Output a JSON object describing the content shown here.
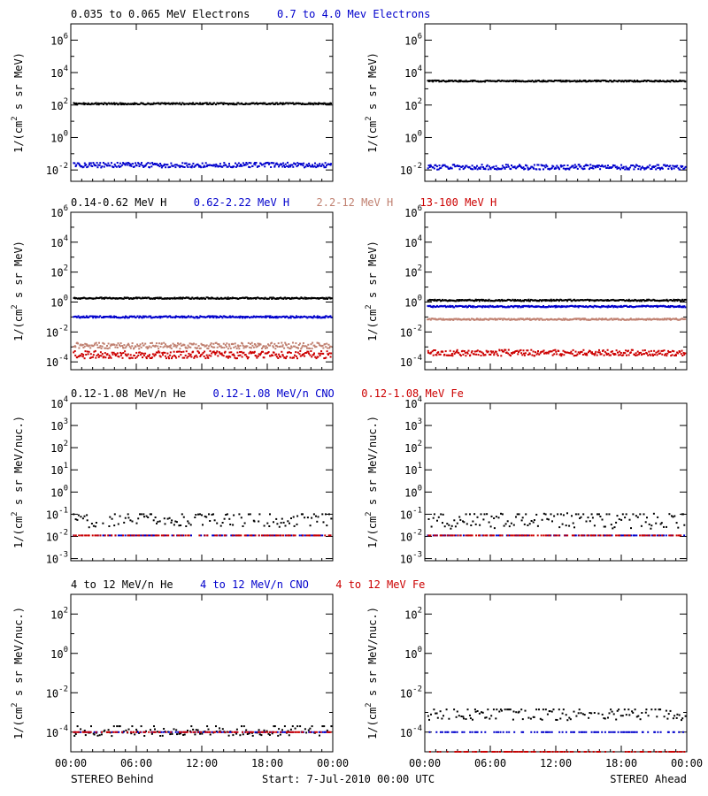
{
  "chart_data": [
    {
      "type": "scatter",
      "panel": "top-left",
      "yscale": "log",
      "ylim": [
        0.002,
        10000000
      ],
      "yticks": [
        "10^6",
        "10^4",
        "10^2",
        "10^0",
        "10^-2"
      ],
      "ylabel": "1/(cm² s sr MeV)",
      "xlabel": "",
      "x": [
        "00:00",
        "06:00",
        "12:00",
        "18:00",
        "00:00"
      ],
      "series": [
        {
          "name": "0.035 to 0.065 MeV Electrons",
          "color": "#000000",
          "level": 120,
          "scatter": 0.05
        },
        {
          "name": "0.7 to 4.0 Mev Electrons",
          "color": "#0000cc",
          "level": 0.02,
          "scatter": 0.15
        }
      ]
    },
    {
      "type": "scatter",
      "panel": "top-right",
      "yscale": "log",
      "ylim": [
        0.002,
        10000000
      ],
      "yticks": [
        "10^6",
        "10^4",
        "10^2",
        "10^0",
        "10^-2"
      ],
      "ylabel": "1/(cm² s sr MeV)",
      "xlabel": "",
      "x": [
        "00:00",
        "06:00",
        "12:00",
        "18:00",
        "00:00"
      ],
      "series": [
        {
          "color": "#000000",
          "level": 3000,
          "scatter": 0.04
        },
        {
          "color": "#0000cc",
          "level": 0.015,
          "scatter": 0.15
        }
      ]
    },
    {
      "type": "scatter",
      "panel": "row2-left",
      "yscale": "log",
      "ylim": [
        3e-05,
        1000000
      ],
      "yticks": [
        "10^6",
        "10^4",
        "10^2",
        "10^0",
        "10^-2",
        "10^-4"
      ],
      "ylabel": "1/(cm² s sr MeV)",
      "xlabel": "",
      "x": [
        "00:00",
        "06:00",
        "12:00",
        "18:00",
        "00:00"
      ],
      "series": [
        {
          "name": "0.14-0.62 MeV H",
          "color": "#000000",
          "level": 1.8,
          "scatter": 0.05
        },
        {
          "name": "0.62-2.22 MeV H",
          "color": "#0000cc",
          "level": 0.1,
          "scatter": 0.06
        },
        {
          "name": "2.2-12 MeV H",
          "color": "#c08070",
          "level": 0.0012,
          "scatter": 0.2
        },
        {
          "name": "13-100 MeV H",
          "color": "#cc0000",
          "level": 0.0003,
          "scatter": 0.25
        }
      ]
    },
    {
      "type": "scatter",
      "panel": "row2-right",
      "yscale": "log",
      "ylim": [
        3e-05,
        1000000
      ],
      "yticks": [
        "10^6",
        "10^4",
        "10^2",
        "10^0",
        "10^-2",
        "10^-4"
      ],
      "ylabel": "1/(cm² s sr MeV)",
      "xlabel": "",
      "x": [
        "00:00",
        "06:00",
        "12:00",
        "18:00",
        "00:00"
      ],
      "series": [
        {
          "color": "#000000",
          "level": 1.3,
          "scatter": 0.05
        },
        {
          "color": "#0000cc",
          "level": 0.5,
          "scatter": 0.05
        },
        {
          "color": "#c08070",
          "level": 0.07,
          "scatter": 0.05
        },
        {
          "color": "#cc0000",
          "level": 0.0004,
          "scatter": 0.2
        }
      ]
    },
    {
      "type": "scatter",
      "panel": "row3-left",
      "yscale": "log",
      "ylim": [
        0.0008,
        10000
      ],
      "yticks": [
        "10^4",
        "10^3",
        "10^2",
        "10^1",
        "10^0",
        "10^-1",
        "10^-2",
        "10^-3"
      ],
      "ylabel": "1/(cm² s sr MeV/nuc.)",
      "xlabel": "",
      "x": [
        "00:00",
        "06:00",
        "12:00",
        "18:00",
        "00:00"
      ],
      "series": [
        {
          "name": "0.12-1.08 MeV/n He",
          "color": "#000000",
          "level": 0.05,
          "scatter": 0.3
        },
        {
          "name": "0.12-1.08 MeV/n CNO",
          "color": "#0000cc",
          "level": 0.011,
          "scatter": 0.0
        },
        {
          "name": "0.12-1.08 MeV Fe",
          "color": "#cc0000",
          "level": 0.011,
          "scatter": 0.0
        }
      ]
    },
    {
      "type": "scatter",
      "panel": "row3-right",
      "yscale": "log",
      "ylim": [
        0.0008,
        10000
      ],
      "yticks": [
        "10^4",
        "10^3",
        "10^2",
        "10^1",
        "10^0",
        "10^-1",
        "10^-2",
        "10^-3"
      ],
      "ylabel": "1/(cm² s sr MeV/nuc.)",
      "xlabel": "",
      "x": [
        "00:00",
        "06:00",
        "12:00",
        "18:00",
        "00:00"
      ],
      "series": [
        {
          "color": "#000000",
          "level": 0.05,
          "scatter": 0.35
        },
        {
          "color": "#0000cc",
          "level": 0.011,
          "scatter": 0.0
        },
        {
          "color": "#cc0000",
          "level": 0.011,
          "scatter": 0.0
        }
      ]
    },
    {
      "type": "scatter",
      "panel": "row4-left",
      "yscale": "log",
      "ylim": [
        1e-05,
        1000
      ],
      "yticks": [
        "10^2",
        "10^0",
        "10^-2",
        "10^-4"
      ],
      "ylabel": "1/(cm² s sr MeV/nuc.)",
      "xlabel": "",
      "x": [
        "00:00",
        "06:00",
        "12:00",
        "18:00",
        "00:00"
      ],
      "series": [
        {
          "name": "4 to 12 MeV/n He",
          "color": "#000000",
          "level": 0.0001,
          "scatter": 0.2
        },
        {
          "name": "4 to 12 MeV/n CNO",
          "color": "#0000cc",
          "level": 0.0001,
          "scatter": 0.0
        },
        {
          "name": "4 to 12 MeV Fe",
          "color": "#cc0000",
          "level": 0.0001,
          "scatter": 0.0
        }
      ]
    },
    {
      "type": "scatter",
      "panel": "row4-right",
      "yscale": "log",
      "ylim": [
        1e-05,
        1000
      ],
      "yticks": [
        "10^2",
        "10^0",
        "10^-2",
        "10^-4"
      ],
      "ylabel": "1/(cm² s sr MeV/nuc.)",
      "xlabel": "",
      "x": [
        "00:00",
        "06:00",
        "12:00",
        "18:00",
        "00:00"
      ],
      "series": [
        {
          "color": "#000000",
          "level": 0.0007,
          "scatter": 0.25
        },
        {
          "color": "#0000cc",
          "level": 0.0001,
          "scatter": 0.0
        },
        {
          "color": "#cc0000",
          "level": 1e-05,
          "scatter": 0.0
        }
      ]
    }
  ],
  "footer": {
    "left": "STEREO Behind",
    "center": "Start:  7-Jul-2010 00:00 UTC",
    "right": "STEREO Ahead"
  },
  "colors": {
    "black": "#000000",
    "blue": "#0000cc",
    "salmon": "#c08070",
    "red": "#cc0000"
  }
}
